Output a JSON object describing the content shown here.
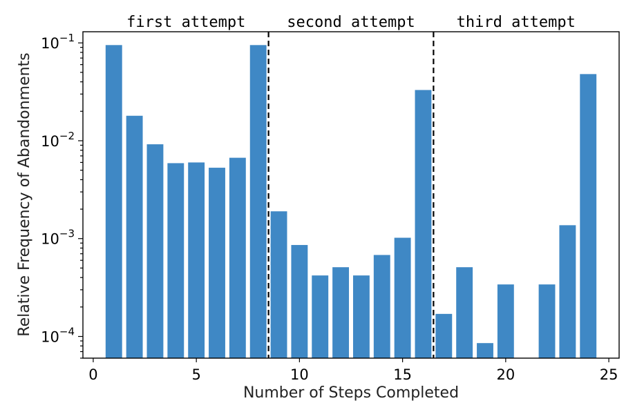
{
  "chart_data": {
    "type": "bar",
    "xlabel": "Number of Steps Completed",
    "ylabel": "Relative Frequency of Abandonments",
    "yscale": "log",
    "ylim": [
      6e-05,
      0.13
    ],
    "xlim": [
      -0.5,
      25.5
    ],
    "grid": false,
    "x_ticks": [
      {
        "value": 0,
        "label": "0"
      },
      {
        "value": 5,
        "label": "5"
      },
      {
        "value": 10,
        "label": "10"
      },
      {
        "value": 15,
        "label": "15"
      },
      {
        "value": 20,
        "label": "20"
      },
      {
        "value": 25,
        "label": "25"
      }
    ],
    "y_ticks": [
      {
        "value": 0.0001,
        "base": "10",
        "exp": "−4"
      },
      {
        "value": 0.001,
        "base": "10",
        "exp": "−3"
      },
      {
        "value": 0.01,
        "base": "10",
        "exp": "−2"
      },
      {
        "value": 0.1,
        "base": "10",
        "exp": "−1"
      }
    ],
    "x": [
      1,
      2,
      3,
      4,
      5,
      6,
      7,
      8,
      9,
      10,
      11,
      12,
      13,
      14,
      15,
      16,
      17,
      18,
      19,
      20,
      21,
      22,
      23,
      24
    ],
    "values": [
      0.095,
      0.018,
      0.0092,
      0.0059,
      0.006,
      0.0053,
      0.0067,
      0.095,
      0.0019,
      0.00086,
      0.00042,
      0.00051,
      0.00042,
      0.00068,
      0.00102,
      0.033,
      0.00017,
      0.00051,
      8.55e-05,
      0.00034,
      null,
      0.00034,
      0.00137,
      0.048
    ],
    "dividers": [
      8.5,
      16.5
    ],
    "sections": [
      {
        "label": "first attempt",
        "center": 4.5
      },
      {
        "label": "second attempt",
        "center": 12.5
      },
      {
        "label": "third attempt",
        "center": 20.5
      }
    ]
  }
}
